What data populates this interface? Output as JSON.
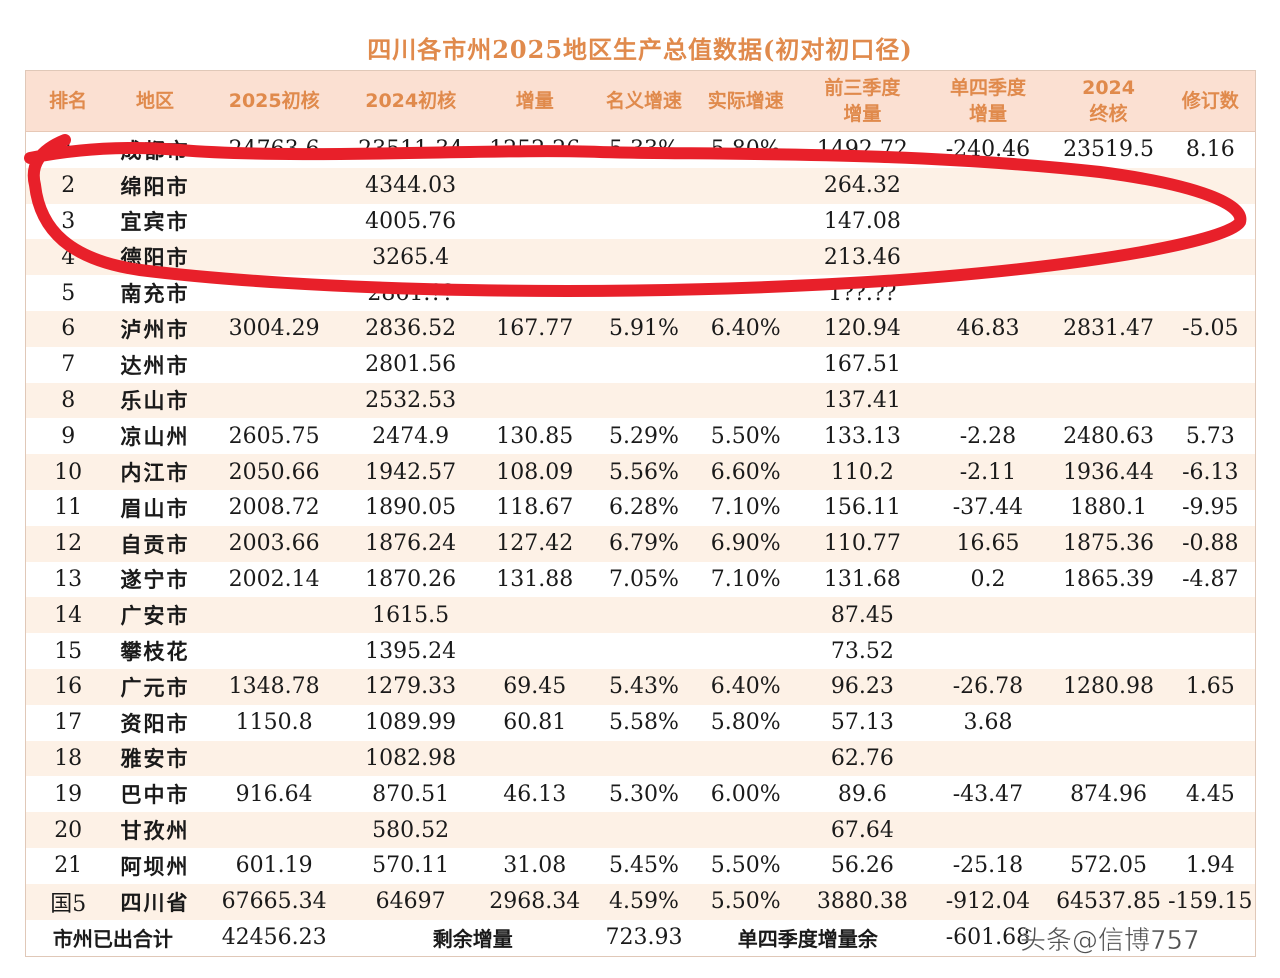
{
  "title": "四川各市州2025地区生产总值数据(初对初口径)",
  "headers": [
    {
      "l1": "排名",
      "l2": ""
    },
    {
      "l1": "地区",
      "l2": ""
    },
    {
      "l1": "2025初核",
      "l2": ""
    },
    {
      "l1": "2024初核",
      "l2": ""
    },
    {
      "l1": "增量",
      "l2": ""
    },
    {
      "l1": "名义增速",
      "l2": ""
    },
    {
      "l1": "实际增速",
      "l2": ""
    },
    {
      "l1": "前三季度",
      "l2": "增量"
    },
    {
      "l1": "单四季度",
      "l2": "增量"
    },
    {
      "l1": "2024",
      "l2": "终核"
    },
    {
      "l1": "修订数",
      "l2": ""
    }
  ],
  "rows": [
    [
      "1",
      "成都市",
      "24763.6",
      "23511.34",
      "1252.26",
      "5.33%",
      "5.80%",
      "1492.72",
      "-240.46",
      "23519.5",
      "8.16"
    ],
    [
      "2",
      "绵阳市",
      "",
      "4344.03",
      "",
      "",
      "",
      "264.32",
      "",
      "",
      ""
    ],
    [
      "3",
      "宜宾市",
      "",
      "4005.76",
      "",
      "",
      "",
      "147.08",
      "",
      "",
      ""
    ],
    [
      "4",
      "德阳市",
      "",
      "3265.4",
      "",
      "",
      "",
      "213.46",
      "",
      "",
      ""
    ],
    [
      "5",
      "南充市",
      "",
      "2861.??",
      "",
      "",
      "",
      "1??.??",
      "",
      "",
      ""
    ],
    [
      "6",
      "泸州市",
      "3004.29",
      "2836.52",
      "167.77",
      "5.91%",
      "6.40%",
      "120.94",
      "46.83",
      "2831.47",
      "-5.05"
    ],
    [
      "7",
      "达州市",
      "",
      "2801.56",
      "",
      "",
      "",
      "167.51",
      "",
      "",
      ""
    ],
    [
      "8",
      "乐山市",
      "",
      "2532.53",
      "",
      "",
      "",
      "137.41",
      "",
      "",
      ""
    ],
    [
      "9",
      "凉山州",
      "2605.75",
      "2474.9",
      "130.85",
      "5.29%",
      "5.50%",
      "133.13",
      "-2.28",
      "2480.63",
      "5.73"
    ],
    [
      "10",
      "内江市",
      "2050.66",
      "1942.57",
      "108.09",
      "5.56%",
      "6.60%",
      "110.2",
      "-2.11",
      "1936.44",
      "-6.13"
    ],
    [
      "11",
      "眉山市",
      "2008.72",
      "1890.05",
      "118.67",
      "6.28%",
      "7.10%",
      "156.11",
      "-37.44",
      "1880.1",
      "-9.95"
    ],
    [
      "12",
      "自贡市",
      "2003.66",
      "1876.24",
      "127.42",
      "6.79%",
      "6.90%",
      "110.77",
      "16.65",
      "1875.36",
      "-0.88"
    ],
    [
      "13",
      "遂宁市",
      "2002.14",
      "1870.26",
      "131.88",
      "7.05%",
      "7.10%",
      "131.68",
      "0.2",
      "1865.39",
      "-4.87"
    ],
    [
      "14",
      "广安市",
      "",
      "1615.5",
      "",
      "",
      "",
      "87.45",
      "",
      "",
      ""
    ],
    [
      "15",
      "攀枝花",
      "",
      "1395.24",
      "",
      "",
      "",
      "73.52",
      "",
      "",
      ""
    ],
    [
      "16",
      "广元市",
      "1348.78",
      "1279.33",
      "69.45",
      "5.43%",
      "6.40%",
      "96.23",
      "-26.78",
      "1280.98",
      "1.65"
    ],
    [
      "17",
      "资阳市",
      "1150.8",
      "1089.99",
      "60.81",
      "5.58%",
      "5.80%",
      "57.13",
      "3.68",
      "",
      ""
    ],
    [
      "18",
      "雅安市",
      "",
      "1082.98",
      "",
      "",
      "",
      "62.76",
      "",
      "",
      ""
    ],
    [
      "19",
      "巴中市",
      "916.64",
      "870.51",
      "46.13",
      "5.30%",
      "6.00%",
      "89.6",
      "-43.47",
      "874.96",
      "4.45"
    ],
    [
      "20",
      "甘孜州",
      "",
      "580.52",
      "",
      "",
      "",
      "67.64",
      "",
      "",
      ""
    ],
    [
      "21",
      "阿坝州",
      "601.19",
      "570.11",
      "31.08",
      "5.45%",
      "5.50%",
      "56.26",
      "-25.18",
      "572.05",
      "1.94"
    ],
    [
      "国5",
      "四川省",
      "67665.34",
      "64697",
      "2968.34",
      "4.59%",
      "5.50%",
      "3880.38",
      "-912.04",
      "64537.85",
      "-159.15"
    ]
  ],
  "footer": {
    "label": "市州已出合计",
    "total": "42456.23",
    "remaining_label": "剩余增量",
    "remaining_value": "723.93",
    "q4_label": "单四季度增量余",
    "q4_value": "-601.68"
  },
  "watermark": "头条@信博757",
  "colors": {
    "header_bg": "#fbe0d2",
    "header_text": "#e08a4c",
    "alt_row_bg": "#fdf1e6",
    "annotation_red": "#e8202a"
  }
}
